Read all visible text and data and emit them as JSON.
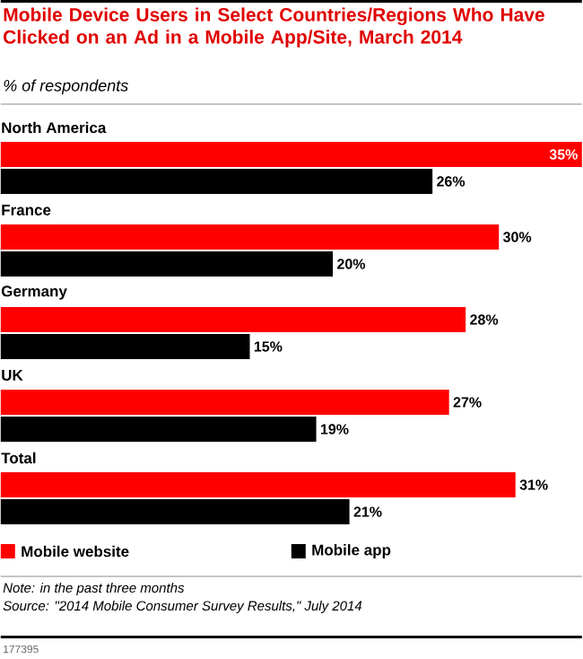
{
  "chart_data": {
    "type": "bar",
    "orientation": "horizontal",
    "title": "Mobile Device Users in Select Countries/Regions Who Have Clicked on an Ad in a Mobile App/Site, March 2014",
    "subtitle": "% of respondents",
    "categories": [
      "North America",
      "France",
      "Germany",
      "UK",
      "Total"
    ],
    "series": [
      {
        "name": "Mobile website",
        "color": "#ff0000",
        "values": [
          35,
          30,
          28,
          27,
          31
        ],
        "value_labels": [
          "35%",
          "30%",
          "28%",
          "27%",
          "31%"
        ]
      },
      {
        "name": "Mobile app",
        "color": "#000000",
        "values": [
          26,
          20,
          15,
          19,
          21
        ],
        "value_labels": [
          "26%",
          "20%",
          "15%",
          "19%",
          "21%"
        ]
      }
    ],
    "xlim": [
      0,
      35
    ],
    "legend": "bottom",
    "annotations": [
      "Note: in the past three months",
      "Source: \"2014 Mobile Consumer Survey Results,\" July 2014",
      "177395"
    ]
  }
}
